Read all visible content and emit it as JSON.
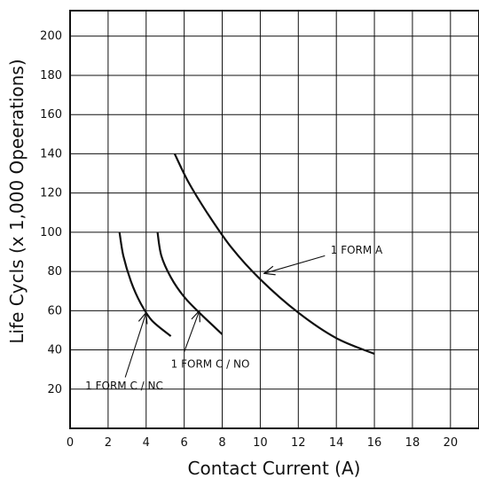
{
  "chart_data": {
    "type": "line",
    "xlabel": "Contact Current (A)",
    "ylabel": "Life Cycls (x 1,000 Opeerations)",
    "xlim": [
      0,
      21.5
    ],
    "ylim": [
      0,
      213
    ],
    "x_ticks": [
      "0",
      "2",
      "4",
      "6",
      "8",
      "10",
      "12",
      "14",
      "16",
      "18",
      "20"
    ],
    "y_ticks": [
      "20",
      "40",
      "60",
      "80",
      "100",
      "120",
      "140",
      "160",
      "180",
      "200"
    ],
    "grid": true,
    "series": [
      {
        "name": "1 FORM C / NC",
        "points": [
          [
            2.6,
            100
          ],
          [
            2.8,
            88
          ],
          [
            3.2,
            75
          ],
          [
            3.7,
            64
          ],
          [
            4.3,
            55
          ],
          [
            5.3,
            47
          ]
        ]
      },
      {
        "name": "1 FORM C / NO",
        "points": [
          [
            4.6,
            100
          ],
          [
            4.8,
            88
          ],
          [
            5.3,
            77
          ],
          [
            6.0,
            67
          ],
          [
            6.9,
            58
          ],
          [
            8.0,
            48
          ]
        ]
      },
      {
        "name": "1 FORM A",
        "points": [
          [
            5.5,
            140
          ],
          [
            6.2,
            126
          ],
          [
            7.2,
            110
          ],
          [
            8.5,
            92
          ],
          [
            10.0,
            76
          ],
          [
            12.0,
            59
          ],
          [
            14.0,
            46
          ],
          [
            16.0,
            38
          ]
        ]
      }
    ],
    "annotations": [
      {
        "text": "1 FORM A",
        "text_pos": [
          13.7,
          89
        ],
        "arrow_from": [
          13.4,
          88
        ],
        "arrow_to": [
          10.2,
          79
        ]
      },
      {
        "text": "1 FORM C / NO",
        "text_pos": [
          5.3,
          31
        ],
        "arrow_from": [
          6.0,
          39
        ],
        "arrow_to": [
          6.8,
          60
        ]
      },
      {
        "text": "1 FORM C / NC",
        "text_pos": [
          0.8,
          20
        ],
        "arrow_from": [
          2.9,
          26
        ],
        "arrow_to": [
          4.0,
          59
        ]
      }
    ]
  }
}
